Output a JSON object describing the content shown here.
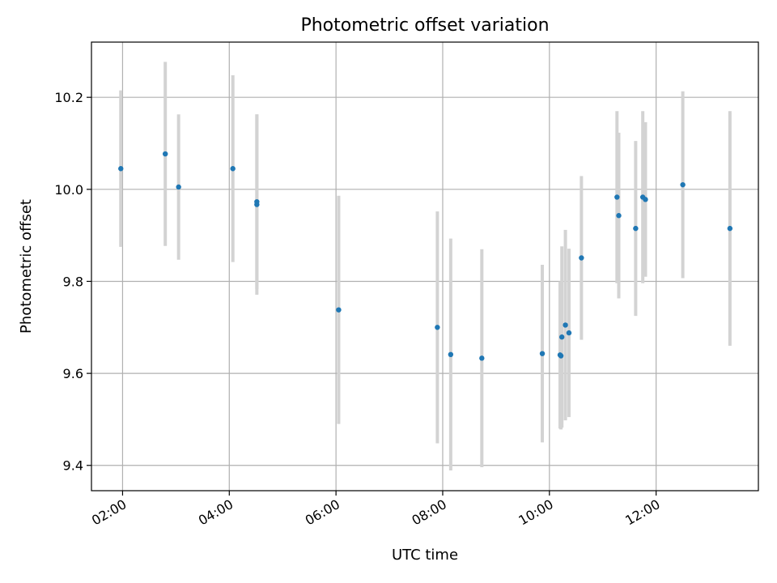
{
  "chart_data": {
    "type": "scatter",
    "title": "Photometric offset variation",
    "xlabel": "UTC time",
    "ylabel": "Photometric offset",
    "x_ticks": [
      "02:00",
      "04:00",
      "06:00",
      "08:00",
      "10:00",
      "12:00"
    ],
    "y_ticks": [
      "9.4",
      "9.6",
      "9.8",
      "10.0",
      "10.2"
    ],
    "xlim": [
      "01:25",
      "13:55"
    ],
    "ylim": [
      9.345,
      10.32
    ],
    "grid": true,
    "colors": {
      "point": "#1f77b4",
      "errorbar": "#d3d3d3",
      "grid": "#b0b0b0"
    },
    "points": [
      {
        "x": "01:58",
        "y": 10.045,
        "err": 0.17
      },
      {
        "x": "02:48",
        "y": 10.077,
        "err": 0.2
      },
      {
        "x": "03:03",
        "y": 10.005,
        "err": 0.158
      },
      {
        "x": "04:04",
        "y": 10.045,
        "err": 0.203
      },
      {
        "x": "04:31",
        "y": 9.973,
        "err": 0.19
      },
      {
        "x": "04:31",
        "y": 9.967,
        "err": 0.196
      },
      {
        "x": "06:03",
        "y": 9.738,
        "err": 0.248
      },
      {
        "x": "07:54",
        "y": 9.7,
        "err": 0.252
      },
      {
        "x": "08:09",
        "y": 9.641,
        "err": 0.252
      },
      {
        "x": "08:44",
        "y": 9.633,
        "err": 0.237
      },
      {
        "x": "09:52",
        "y": 9.643,
        "err": 0.193
      },
      {
        "x": "10:12",
        "y": 9.64,
        "err": 0.16
      },
      {
        "x": "10:13",
        "y": 9.638,
        "err": 0.16
      },
      {
        "x": "10:14",
        "y": 9.679,
        "err": 0.197
      },
      {
        "x": "10:18",
        "y": 9.705,
        "err": 0.207
      },
      {
        "x": "10:22",
        "y": 9.688,
        "err": 0.183
      },
      {
        "x": "10:36",
        "y": 9.851,
        "err": 0.178
      },
      {
        "x": "11:16",
        "y": 9.983,
        "err": 0.187
      },
      {
        "x": "11:18",
        "y": 9.943,
        "err": 0.18
      },
      {
        "x": "11:37",
        "y": 9.915,
        "err": 0.19
      },
      {
        "x": "11:45",
        "y": 9.983,
        "err": 0.187
      },
      {
        "x": "11:48",
        "y": 9.978,
        "err": 0.168
      },
      {
        "x": "12:30",
        "y": 10.01,
        "err": 0.203
      },
      {
        "x": "13:23",
        "y": 9.915,
        "err": 0.255
      }
    ]
  }
}
